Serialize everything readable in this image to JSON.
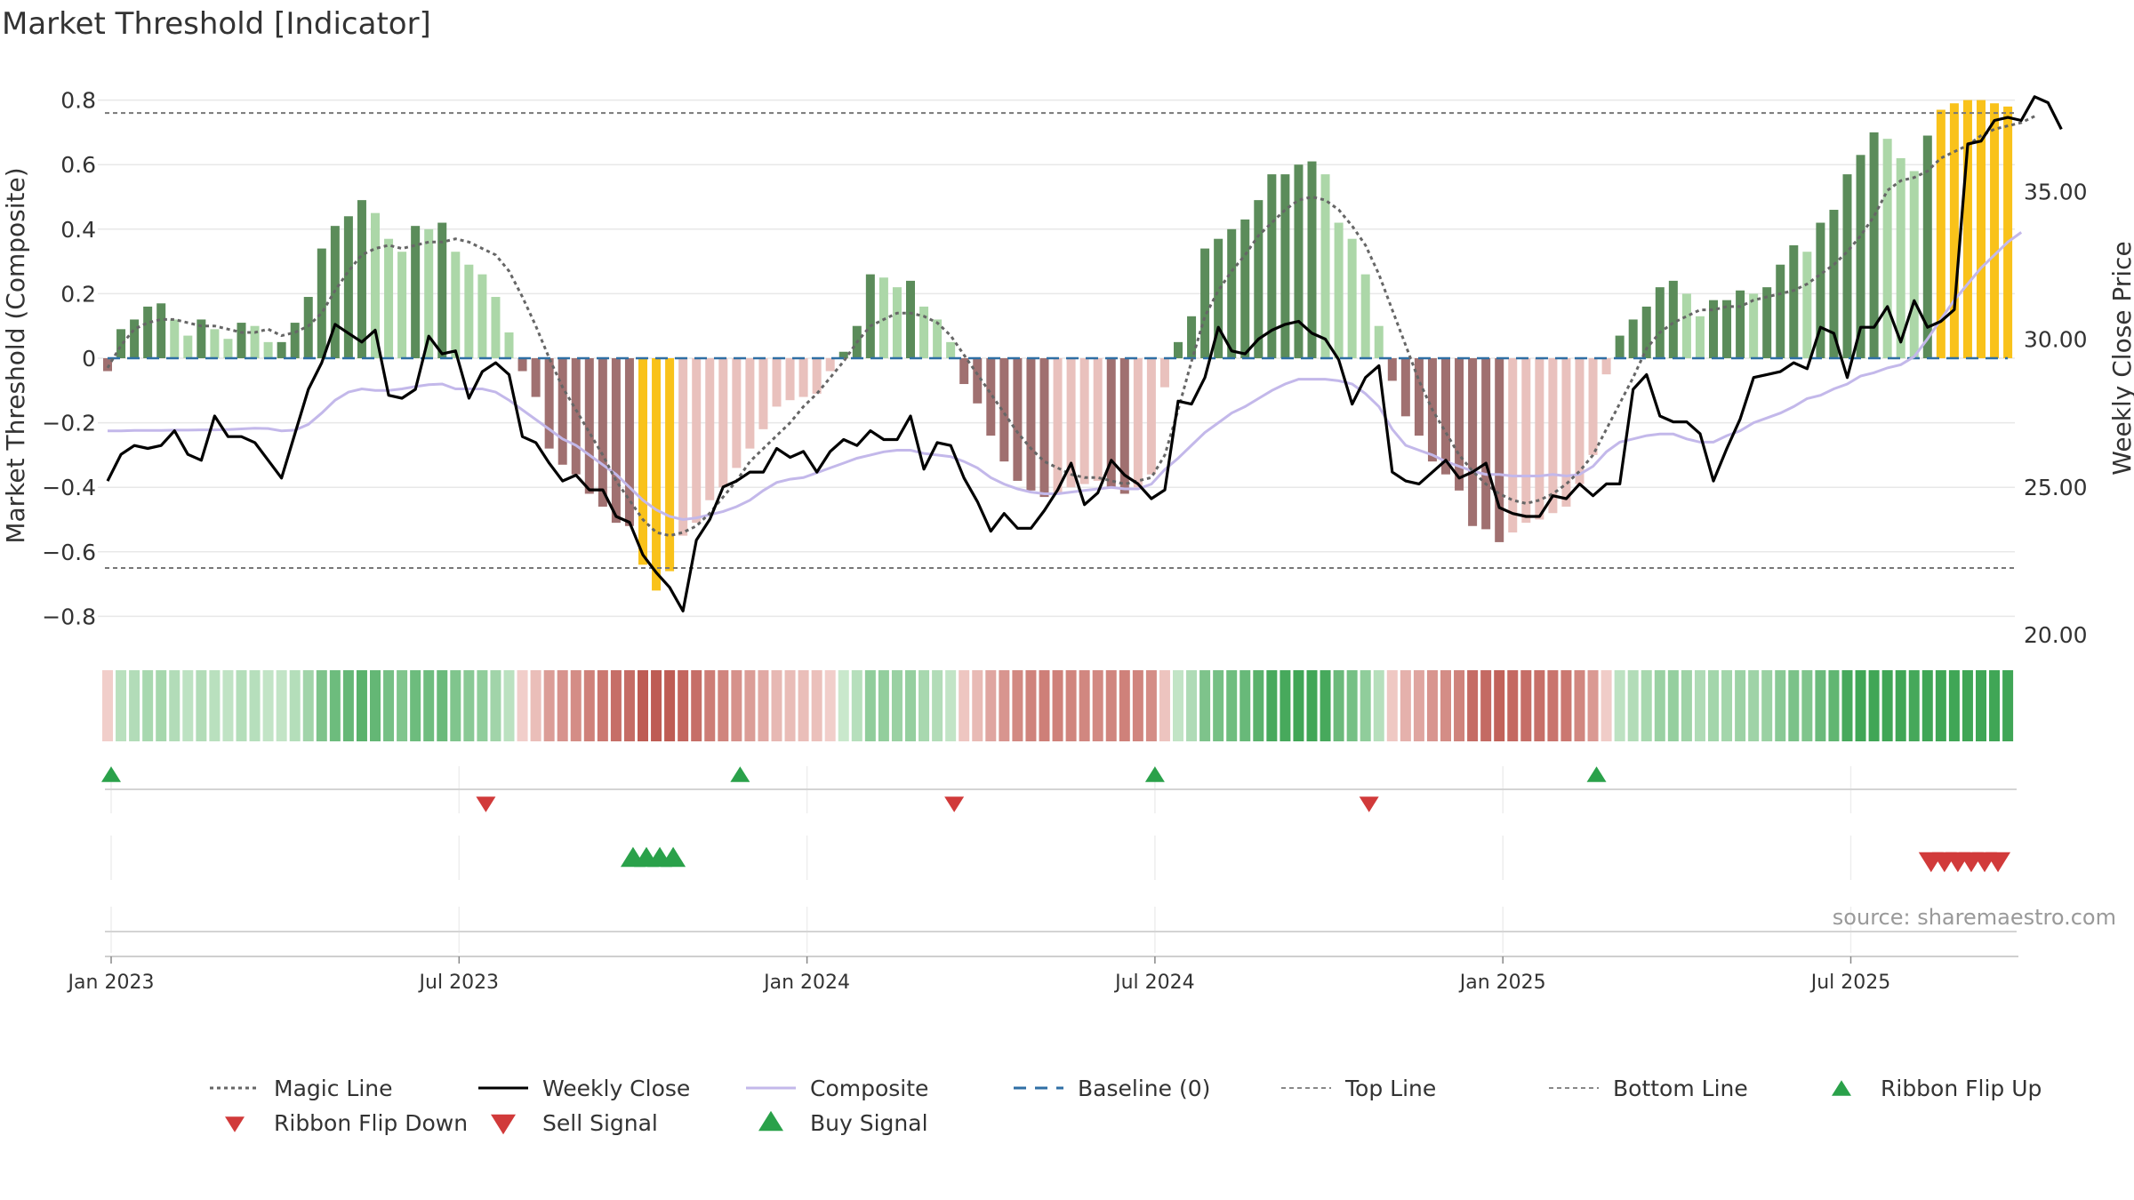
{
  "chart_data": {
    "type": "bar",
    "title": "Market Threshold [Indicator]",
    "ylabel_left": "Market Threshold (Composite)",
    "ylabel_right": "Weekly Close Price",
    "source": "source: sharemaestro.com",
    "ylim_left": [
      -0.88,
      0.82
    ],
    "yticks_left": [
      "0.8",
      "0.6",
      "0.4",
      "0.2",
      "0",
      "−0.2",
      "−0.4",
      "−0.6",
      "−0.8"
    ],
    "ylim_right": [
      20.0,
      38.0
    ],
    "yticks_right": [
      "35.00",
      "30.00",
      "25.00",
      "20.00"
    ],
    "top_line": 0.76,
    "bottom_line": -0.65,
    "x_tick_labels": [
      "Jan 2023",
      "Jul 2023",
      "Jan 2024",
      "Jul 2024",
      "Jan 2025",
      "Jul 2025"
    ],
    "x_tick_weeks": [
      1,
      27,
      53,
      79,
      105,
      131
    ],
    "composite_bars": [
      -0.04,
      0.09,
      0.12,
      0.16,
      0.17,
      0.12,
      0.07,
      0.12,
      0.09,
      0.06,
      0.11,
      0.1,
      0.05,
      0.05,
      0.11,
      0.19,
      0.34,
      0.41,
      0.44,
      0.49,
      0.45,
      0.37,
      0.33,
      0.41,
      0.4,
      0.42,
      0.33,
      0.29,
      0.26,
      0.19,
      0.08,
      -0.04,
      -0.12,
      -0.28,
      -0.33,
      -0.36,
      -0.42,
      -0.46,
      -0.51,
      -0.52,
      -0.64,
      -0.72,
      -0.66,
      -0.55,
      -0.51,
      -0.44,
      -0.4,
      -0.34,
      -0.28,
      -0.22,
      -0.15,
      -0.13,
      -0.12,
      -0.11,
      -0.04,
      0.02,
      0.1,
      0.26,
      0.25,
      0.22,
      0.24,
      0.16,
      0.12,
      0.05,
      -0.08,
      -0.14,
      -0.24,
      -0.32,
      -0.38,
      -0.41,
      -0.43,
      -0.42,
      -0.4,
      -0.39,
      -0.38,
      -0.4,
      -0.42,
      -0.4,
      -0.36,
      -0.09,
      0.05,
      0.13,
      0.34,
      0.37,
      0.4,
      0.43,
      0.49,
      0.57,
      0.57,
      0.6,
      0.61,
      0.57,
      0.42,
      0.37,
      0.26,
      0.1,
      -0.07,
      -0.18,
      -0.24,
      -0.32,
      -0.36,
      -0.41,
      -0.52,
      -0.53,
      -0.57,
      -0.54,
      -0.51,
      -0.5,
      -0.48,
      -0.46,
      -0.39,
      -0.3,
      -0.05,
      0.07,
      0.12,
      0.16,
      0.22,
      0.24,
      0.2,
      0.13,
      0.18,
      0.18,
      0.21,
      0.2,
      0.22,
      0.29,
      0.35,
      0.33,
      0.42,
      0.46,
      0.57,
      0.63,
      0.7,
      0.68,
      0.62,
      0.58,
      0.69,
      0.77,
      0.79,
      0.8,
      0.8,
      0.79,
      0.78
    ],
    "weekly_close": [
      25.2,
      26.1,
      26.4,
      26.3,
      26.4,
      26.9,
      26.1,
      25.9,
      27.4,
      26.7,
      26.7,
      26.5,
      25.9,
      25.3,
      26.8,
      28.3,
      29.2,
      30.5,
      30.2,
      29.9,
      30.3,
      28.1,
      28.0,
      28.3,
      30.1,
      29.5,
      29.6,
      28.0,
      28.9,
      29.2,
      28.8,
      26.7,
      26.5,
      25.8,
      25.2,
      25.4,
      24.9,
      24.9,
      24.0,
      23.8,
      22.7,
      22.1,
      21.6,
      20.8,
      23.2,
      23.9,
      25.0,
      25.2,
      25.5,
      25.5,
      26.3,
      26.0,
      26.2,
      25.5,
      26.2,
      26.6,
      26.4,
      26.9,
      26.6,
      26.6,
      27.4,
      25.6,
      26.5,
      26.4,
      25.3,
      24.5,
      23.5,
      24.1,
      23.6,
      23.6,
      24.2,
      24.9,
      25.8,
      24.4,
      24.8,
      25.9,
      25.4,
      25.1,
      24.6,
      24.9,
      27.9,
      27.8,
      28.7,
      30.4,
      29.6,
      29.5,
      30.0,
      30.3,
      30.5,
      30.6,
      30.2,
      30.0,
      29.3,
      27.8,
      28.7,
      29.1,
      25.5,
      25.2,
      25.1,
      25.5,
      25.9,
      25.3,
      25.5,
      25.8,
      24.3,
      24.1,
      24.0,
      24.0,
      24.7,
      24.6,
      25.1,
      24.7,
      25.1,
      25.1,
      28.3,
      28.8,
      27.4,
      27.2,
      27.2,
      26.8,
      25.2,
      26.3,
      27.3,
      28.7,
      28.8,
      28.9,
      29.2,
      29.0,
      30.4,
      30.2,
      28.7,
      30.4,
      30.4,
      31.1,
      29.9,
      31.3,
      30.4,
      30.6,
      31.0,
      36.6,
      36.7,
      37.4,
      37.5,
      37.4,
      38.2,
      38.0,
      37.1
    ],
    "magic_line": [
      -0.03,
      0.04,
      0.09,
      0.11,
      0.12,
      0.12,
      0.11,
      0.1,
      0.1,
      0.09,
      0.08,
      0.08,
      0.09,
      0.07,
      0.08,
      0.1,
      0.14,
      0.21,
      0.27,
      0.32,
      0.34,
      0.35,
      0.34,
      0.35,
      0.36,
      0.36,
      0.37,
      0.36,
      0.34,
      0.32,
      0.27,
      0.19,
      0.1,
      0.0,
      -0.09,
      -0.16,
      -0.23,
      -0.3,
      -0.38,
      -0.44,
      -0.5,
      -0.54,
      -0.55,
      -0.54,
      -0.52,
      -0.48,
      -0.43,
      -0.38,
      -0.32,
      -0.28,
      -0.24,
      -0.2,
      -0.15,
      -0.11,
      -0.06,
      -0.01,
      0.05,
      0.1,
      0.12,
      0.14,
      0.14,
      0.13,
      0.11,
      0.07,
      0.01,
      -0.05,
      -0.11,
      -0.17,
      -0.23,
      -0.28,
      -0.32,
      -0.34,
      -0.36,
      -0.37,
      -0.37,
      -0.38,
      -0.39,
      -0.38,
      -0.37,
      -0.3,
      -0.16,
      -0.01,
      0.13,
      0.21,
      0.27,
      0.32,
      0.38,
      0.42,
      0.46,
      0.49,
      0.5,
      0.49,
      0.46,
      0.41,
      0.35,
      0.26,
      0.15,
      0.04,
      -0.07,
      -0.16,
      -0.23,
      -0.3,
      -0.35,
      -0.39,
      -0.42,
      -0.44,
      -0.45,
      -0.44,
      -0.42,
      -0.39,
      -0.35,
      -0.3,
      -0.22,
      -0.14,
      -0.06,
      0.03,
      0.08,
      0.11,
      0.13,
      0.15,
      0.15,
      0.16,
      0.16,
      0.18,
      0.19,
      0.2,
      0.21,
      0.23,
      0.26,
      0.29,
      0.33,
      0.38,
      0.44,
      0.52,
      0.55,
      0.56,
      0.58,
      0.62,
      0.64,
      0.66,
      0.69,
      0.71,
      0.72,
      0.73,
      0.75
    ],
    "composite_line": [
      -0.225,
      -0.225,
      -0.224,
      -0.224,
      -0.224,
      -0.223,
      -0.223,
      -0.222,
      -0.222,
      -0.221,
      -0.219,
      -0.217,
      -0.218,
      -0.225,
      -0.223,
      -0.205,
      -0.17,
      -0.13,
      -0.105,
      -0.095,
      -0.1,
      -0.1,
      -0.095,
      -0.088,
      -0.082,
      -0.08,
      -0.095,
      -0.095,
      -0.095,
      -0.105,
      -0.13,
      -0.16,
      -0.19,
      -0.22,
      -0.25,
      -0.27,
      -0.3,
      -0.33,
      -0.36,
      -0.4,
      -0.44,
      -0.47,
      -0.49,
      -0.5,
      -0.495,
      -0.485,
      -0.475,
      -0.46,
      -0.44,
      -0.41,
      -0.385,
      -0.375,
      -0.37,
      -0.355,
      -0.34,
      -0.325,
      -0.31,
      -0.3,
      -0.29,
      -0.285,
      -0.285,
      -0.295,
      -0.3,
      -0.305,
      -0.32,
      -0.34,
      -0.37,
      -0.39,
      -0.405,
      -0.415,
      -0.42,
      -0.42,
      -0.415,
      -0.41,
      -0.405,
      -0.4,
      -0.405,
      -0.405,
      -0.39,
      -0.345,
      -0.31,
      -0.27,
      -0.23,
      -0.2,
      -0.17,
      -0.15,
      -0.125,
      -0.1,
      -0.08,
      -0.065,
      -0.065,
      -0.065,
      -0.07,
      -0.08,
      -0.11,
      -0.15,
      -0.22,
      -0.27,
      -0.285,
      -0.3,
      -0.32,
      -0.335,
      -0.35,
      -0.36,
      -0.36,
      -0.365,
      -0.365,
      -0.365,
      -0.36,
      -0.365,
      -0.36,
      -0.335,
      -0.29,
      -0.26,
      -0.25,
      -0.24,
      -0.235,
      -0.235,
      -0.25,
      -0.26,
      -0.26,
      -0.24,
      -0.225,
      -0.2,
      -0.185,
      -0.17,
      -0.15,
      -0.125,
      -0.115,
      -0.095,
      -0.08,
      -0.055,
      -0.045,
      -0.03,
      -0.02,
      0.005,
      0.06,
      0.12,
      0.18,
      0.23,
      0.28,
      0.32,
      0.36,
      0.39
    ],
    "ribbon_flip_up_weeks": [
      1,
      48,
      79,
      112
    ],
    "ribbon_flip_down_weeks": [
      29,
      64,
      95
    ],
    "buy_signal_weeks": [
      40,
      41,
      42,
      43
    ],
    "sell_signal_weeks": [
      137,
      138,
      139,
      140,
      141,
      142
    ],
    "colors": {
      "bull_strong": "#5b8c5a",
      "bull_weak": "#acd7a8",
      "bear_strong": "#a07070",
      "bear_weak": "#e9c1bd",
      "extreme": "#f9c21a",
      "weekly_close": "#000000",
      "composite": "#c3b8ea",
      "magic_line": "#666666",
      "baseline": "#2f6fa4",
      "signal_up": "#2aa14a",
      "signal_down": "#d13a3a"
    },
    "legend": [
      {
        "label": "Magic Line",
        "kind": "dotted"
      },
      {
        "label": "Weekly Close",
        "kind": "solid"
      },
      {
        "label": "Composite",
        "kind": "composite"
      },
      {
        "label": "Baseline (0)",
        "kind": "dashed"
      },
      {
        "label": "Top Line",
        "kind": "thin-dashed"
      },
      {
        "label": "Bottom Line",
        "kind": "thin-dashed"
      },
      {
        "label": "Ribbon Flip Up",
        "kind": "up-small"
      },
      {
        "label": "Ribbon Flip Down",
        "kind": "down-small"
      },
      {
        "label": "Sell Signal",
        "kind": "down-big"
      },
      {
        "label": "Buy Signal",
        "kind": "up-big"
      }
    ]
  }
}
